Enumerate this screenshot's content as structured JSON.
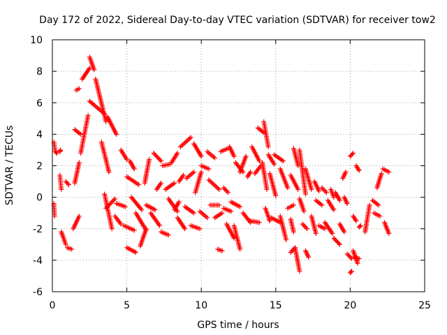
{
  "chart_data": {
    "type": "scatter",
    "title": "Day 172 of 2022, Sidereal Day-to-day VTEC variation (SDTVAR) for receiver tow2",
    "xlabel": "GPS time / hours",
    "ylabel": "SDTVAR / TECUs",
    "xlim": [
      0,
      25
    ],
    "ylim": [
      -6,
      10
    ],
    "xticks": [
      0,
      5,
      10,
      15,
      20,
      25
    ],
    "xtick_labels": [
      "0",
      "5",
      "10",
      "15",
      "20",
      "25"
    ],
    "yticks": [
      -6,
      -4,
      -2,
      0,
      2,
      4,
      6,
      8,
      10
    ],
    "ytick_labels": [
      "-6",
      "-4",
      "-2",
      "0",
      "2",
      "4",
      "6",
      "8",
      "10"
    ],
    "grid": true,
    "marker": "+",
    "marker_color": "#ff0000",
    "series": [
      {
        "name": "SDTVAR",
        "tracks": [
          [
            [
              0.1,
              3.5
            ],
            [
              0.2,
              2.9
            ],
            [
              0.3,
              2.8
            ]
          ],
          [
            [
              0.1,
              -0.4
            ],
            [
              0.15,
              -1.2
            ]
          ],
          [
            [
              0.5,
              2.9
            ],
            [
              0.55,
              3.0
            ]
          ],
          [
            [
              0.5,
              1.4
            ],
            [
              0.6,
              0.5
            ]
          ],
          [
            [
              0.6,
              -2.2
            ],
            [
              0.9,
              -3.0
            ]
          ],
          [
            [
              0.9,
              1.0
            ],
            [
              1.1,
              0.8
            ]
          ],
          [
            [
              1.0,
              -3.2
            ],
            [
              1.3,
              -3.3
            ]
          ],
          [
            [
              1.4,
              -2.0
            ],
            [
              1.8,
              -1.2
            ]
          ],
          [
            [
              1.5,
              0.9
            ],
            [
              1.8,
              2.2
            ]
          ],
          [
            [
              1.5,
              4.3
            ],
            [
              1.9,
              4.0
            ]
          ],
          [
            [
              1.6,
              6.8
            ],
            [
              1.8,
              6.9
            ]
          ],
          [
            [
              1.9,
              2.8
            ],
            [
              2.4,
              5.2
            ]
          ],
          [
            [
              2.0,
              7.5
            ],
            [
              2.5,
              8.2
            ]
          ],
          [
            [
              2.5,
              8.9
            ],
            [
              2.8,
              8.1
            ]
          ],
          [
            [
              2.5,
              6.1
            ],
            [
              3.5,
              5.3
            ]
          ],
          [
            [
              2.9,
              7.5
            ],
            [
              3.6,
              4.8
            ]
          ],
          [
            [
              3.3,
              3.5
            ],
            [
              3.8,
              1.6
            ]
          ],
          [
            [
              3.5,
              0.2
            ],
            [
              4.0,
              -2.0
            ]
          ],
          [
            [
              3.6,
              -0.7
            ],
            [
              4.2,
              -0.1
            ]
          ],
          [
            [
              3.7,
              5.1
            ],
            [
              4.3,
              4.0
            ]
          ],
          [
            [
              4.2,
              -1.2
            ],
            [
              4.6,
              -1.7
            ]
          ],
          [
            [
              4.3,
              -0.4
            ],
            [
              4.9,
              -0.6
            ]
          ],
          [
            [
              4.6,
              3.0
            ],
            [
              5.0,
              2.4
            ]
          ],
          [
            [
              4.8,
              -1.8
            ],
            [
              5.5,
              -2.1
            ]
          ],
          [
            [
              5.0,
              -3.2
            ],
            [
              5.6,
              -3.5
            ]
          ],
          [
            [
              5.0,
              1.3
            ],
            [
              5.8,
              0.8
            ]
          ],
          [
            [
              5.2,
              2.3
            ],
            [
              5.5,
              1.8
            ]
          ],
          [
            [
              5.3,
              0.0
            ],
            [
              6.0,
              -0.8
            ]
          ],
          [
            [
              5.6,
              -1.0
            ],
            [
              6.3,
              -2.1
            ]
          ],
          [
            [
              5.9,
              -3.1
            ],
            [
              6.3,
              -2.0
            ]
          ],
          [
            [
              6.2,
              0.9
            ],
            [
              6.5,
              2.4
            ]
          ],
          [
            [
              6.3,
              -0.5
            ],
            [
              6.9,
              -0.8
            ]
          ],
          [
            [
              6.6,
              -1.0
            ],
            [
              7.2,
              -1.8
            ]
          ],
          [
            [
              6.8,
              2.8
            ],
            [
              7.3,
              2.3
            ]
          ],
          [
            [
              7.0,
              0.5
            ],
            [
              7.3,
              0.9
            ]
          ],
          [
            [
              7.3,
              -2.2
            ],
            [
              7.8,
              -2.4
            ]
          ],
          [
            [
              7.4,
              2.0
            ],
            [
              7.9,
              2.1
            ]
          ],
          [
            [
              7.6,
              0.5
            ],
            [
              8.2,
              0.9
            ]
          ],
          [
            [
              7.8,
              -0.1
            ],
            [
              8.4,
              -0.9
            ]
          ],
          [
            [
              8.0,
              2.2
            ],
            [
              8.4,
              2.8
            ]
          ],
          [
            [
              8.2,
              -0.8
            ],
            [
              8.5,
              -0.3
            ]
          ],
          [
            [
              8.4,
              -1.3
            ],
            [
              8.9,
              -2.0
            ]
          ],
          [
            [
              8.5,
              1.0
            ],
            [
              8.8,
              1.4
            ]
          ],
          [
            [
              8.6,
              3.2
            ],
            [
              9.3,
              3.8
            ]
          ],
          [
            [
              8.9,
              -0.6
            ],
            [
              9.5,
              -1.0
            ]
          ],
          [
            [
              9.0,
              1.2
            ],
            [
              9.5,
              1.6
            ]
          ],
          [
            [
              9.3,
              -1.8
            ],
            [
              9.9,
              -2.0
            ]
          ],
          [
            [
              9.5,
              3.4
            ],
            [
              10.0,
              2.6
            ]
          ],
          [
            [
              9.6,
              0.3
            ],
            [
              10.0,
              1.6
            ]
          ],
          [
            [
              9.9,
              -0.9
            ],
            [
              10.4,
              -1.3
            ]
          ],
          [
            [
              10.0,
              2.0
            ],
            [
              10.5,
              1.8
            ]
          ],
          [
            [
              10.4,
              2.9
            ],
            [
              10.9,
              2.5
            ]
          ],
          [
            [
              10.5,
              1.1
            ],
            [
              11.2,
              0.5
            ]
          ],
          [
            [
              10.6,
              -0.5
            ],
            [
              11.2,
              -0.5
            ]
          ],
          [
            [
              10.9,
              -1.3
            ],
            [
              11.4,
              -1.0
            ]
          ],
          [
            [
              11.1,
              -3.3
            ],
            [
              11.4,
              -3.4
            ]
          ],
          [
            [
              11.3,
              2.9
            ],
            [
              11.8,
              3.1
            ]
          ],
          [
            [
              11.5,
              0.6
            ],
            [
              11.8,
              0.3
            ]
          ],
          [
            [
              11.5,
              -0.7
            ],
            [
              12.0,
              -0.9
            ]
          ],
          [
            [
              11.7,
              -1.7
            ],
            [
              12.2,
              -2.6
            ]
          ],
          [
            [
              11.9,
              3.2
            ],
            [
              12.2,
              2.6
            ]
          ],
          [
            [
              12.0,
              -0.3
            ],
            [
              12.6,
              -0.6
            ]
          ],
          [
            [
              12.2,
              -1.8
            ],
            [
              12.6,
              -3.3
            ]
          ],
          [
            [
              12.3,
              2.2
            ],
            [
              12.8,
              1.6
            ]
          ],
          [
            [
              12.6,
              1.6
            ],
            [
              13.0,
              2.6
            ]
          ],
          [
            [
              12.8,
              -1.0
            ],
            [
              13.3,
              -1.6
            ]
          ],
          [
            [
              13.1,
              1.3
            ],
            [
              13.3,
              1.6
            ]
          ],
          [
            [
              13.3,
              -1.5
            ],
            [
              13.9,
              -1.6
            ]
          ],
          [
            [
              13.4,
              3.2
            ],
            [
              13.9,
              2.3
            ]
          ],
          [
            [
              13.6,
              1.5
            ],
            [
              14.0,
              2.0
            ]
          ],
          [
            [
              13.8,
              4.4
            ],
            [
              14.2,
              4.1
            ]
          ],
          [
            [
              14.1,
              2.2
            ],
            [
              14.4,
              0.5
            ]
          ],
          [
            [
              14.2,
              4.8
            ],
            [
              14.5,
              3.2
            ]
          ],
          [
            [
              14.3,
              -0.7
            ],
            [
              14.6,
              -1.5
            ]
          ],
          [
            [
              14.5,
              2.7
            ],
            [
              14.9,
              2.1
            ]
          ],
          [
            [
              14.6,
              1.5
            ],
            [
              15.0,
              0.1
            ]
          ],
          [
            [
              14.7,
              -1.3
            ],
            [
              15.3,
              -1.6
            ]
          ],
          [
            [
              14.9,
              2.7
            ],
            [
              15.5,
              2.3
            ]
          ],
          [
            [
              15.3,
              1.8
            ],
            [
              15.8,
              0.6
            ]
          ],
          [
            [
              15.3,
              -1.2
            ],
            [
              15.7,
              -2.7
            ]
          ],
          [
            [
              15.8,
              -0.7
            ],
            [
              16.2,
              -0.5
            ]
          ],
          [
            [
              16.0,
              -1.4
            ],
            [
              16.2,
              -2.2
            ]
          ],
          [
            [
              16.0,
              -3.5
            ],
            [
              16.3,
              -3.2
            ]
          ],
          [
            [
              16.0,
              1.4
            ],
            [
              16.5,
              0.5
            ]
          ],
          [
            [
              16.2,
              3.1
            ],
            [
              16.5,
              2.0
            ]
          ],
          [
            [
              16.3,
              -3.2
            ],
            [
              16.6,
              -4.7
            ]
          ],
          [
            [
              16.6,
              -0.1
            ],
            [
              16.9,
              -0.9
            ]
          ],
          [
            [
              16.6,
              3.0
            ],
            [
              17.0,
              0.2
            ]
          ],
          [
            [
              16.8,
              -1.7
            ],
            [
              17.1,
              -2.0
            ]
          ],
          [
            [
              17.0,
              -3.4
            ],
            [
              17.2,
              -3.8
            ]
          ],
          [
            [
              17.0,
              1.8
            ],
            [
              17.4,
              0.5
            ]
          ],
          [
            [
              17.4,
              -1.2
            ],
            [
              17.7,
              -2.3
            ]
          ],
          [
            [
              17.6,
              1.0
            ],
            [
              17.9,
              0.4
            ]
          ],
          [
            [
              17.7,
              -0.2
            ],
            [
              18.1,
              -0.5
            ]
          ],
          [
            [
              17.9,
              -1.8
            ],
            [
              18.3,
              -2.0
            ]
          ],
          [
            [
              18.1,
              0.6
            ],
            [
              18.4,
              0.3
            ]
          ],
          [
            [
              18.3,
              -1.6
            ],
            [
              18.8,
              -2.3
            ]
          ],
          [
            [
              18.5,
              -0.2
            ],
            [
              18.9,
              -0.8
            ]
          ],
          [
            [
              18.7,
              0.5
            ],
            [
              18.9,
              0.0
            ]
          ],
          [
            [
              18.9,
              -2.6
            ],
            [
              19.3,
              -3.0
            ]
          ],
          [
            [
              19.0,
              0.3
            ],
            [
              19.3,
              -0.2
            ]
          ],
          [
            [
              19.3,
              -1.7
            ],
            [
              19.6,
              -2.2
            ]
          ],
          [
            [
              19.5,
              1.2
            ],
            [
              19.7,
              1.6
            ]
          ],
          [
            [
              19.6,
              0.0
            ],
            [
              19.8,
              -0.4
            ]
          ],
          [
            [
              19.8,
              -3.6
            ],
            [
              20.1,
              -3.9
            ]
          ],
          [
            [
              20.0,
              -4.8
            ],
            [
              20.1,
              -4.7
            ]
          ],
          [
            [
              20.0,
              2.6
            ],
            [
              20.2,
              2.8
            ]
          ],
          [
            [
              20.2,
              -3.4
            ],
            [
              20.5,
              -4.2
            ]
          ],
          [
            [
              20.2,
              -1.2
            ],
            [
              20.4,
              -1.5
            ]
          ],
          [
            [
              20.3,
              -3.8
            ],
            [
              20.6,
              -3.9
            ]
          ],
          [
            [
              20.4,
              2.0
            ],
            [
              20.6,
              1.7
            ]
          ],
          [
            [
              20.6,
              -1.9
            ],
            [
              20.7,
              -1.8
            ]
          ],
          [
            [
              21.0,
              -2.2
            ],
            [
              21.3,
              -0.5
            ]
          ],
          [
            [
              21.5,
              -0.2
            ],
            [
              21.9,
              -0.5
            ]
          ],
          [
            [
              21.6,
              -1.0
            ],
            [
              22.0,
              -1.2
            ]
          ],
          [
            [
              21.8,
              0.6
            ],
            [
              22.1,
              1.5
            ]
          ],
          [
            [
              22.2,
              1.8
            ],
            [
              22.6,
              1.6
            ]
          ],
          [
            [
              22.3,
              -1.6
            ],
            [
              22.6,
              -2.3
            ]
          ]
        ]
      }
    ]
  }
}
